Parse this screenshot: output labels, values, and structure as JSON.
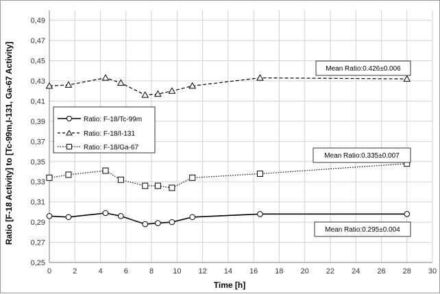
{
  "chart_data": {
    "type": "line",
    "xlabel": "Time [h]",
    "ylabel": "Ratio [F-18 Activity] to [Tc-99m,I-131, Ga-67 Activity]",
    "xlim": [
      0,
      30
    ],
    "ylim": [
      0.25,
      0.5
    ],
    "x_ticks": [
      "0",
      "2",
      "4",
      "6",
      "8",
      "10",
      "12",
      "14",
      "16",
      "18",
      "20",
      "22",
      "24",
      "26",
      "28",
      "30"
    ],
    "y_ticks": [
      "0,25",
      "0,27",
      "0,29",
      "0,31",
      "0,33",
      "0,35",
      "0,37",
      "0,39",
      "0,41",
      "0,43",
      "0,45",
      "0,47",
      "0,49"
    ],
    "grid": true,
    "legend_position": "left",
    "series": [
      {
        "name": "Ratio: F-18/Tc-99m",
        "marker": "circle",
        "dash": "solid",
        "points": [
          [
            0,
            0.296
          ],
          [
            1.5,
            0.295
          ],
          [
            4.4,
            0.299
          ],
          [
            5.6,
            0.296
          ],
          [
            7.5,
            0.288
          ],
          [
            8.5,
            0.289
          ],
          [
            9.6,
            0.29
          ],
          [
            11.2,
            0.295
          ],
          [
            16.5,
            0.298
          ],
          [
            28,
            0.298
          ]
        ]
      },
      {
        "name": "Ratio: F-18/I-131",
        "marker": "triangle",
        "dash": "dashed",
        "points": [
          [
            0,
            0.425
          ],
          [
            1.5,
            0.426
          ],
          [
            4.4,
            0.433
          ],
          [
            5.6,
            0.428
          ],
          [
            7.5,
            0.416
          ],
          [
            8.5,
            0.417
          ],
          [
            9.6,
            0.42
          ],
          [
            11.2,
            0.425
          ],
          [
            16.5,
            0.433
          ],
          [
            28,
            0.432
          ]
        ]
      },
      {
        "name": "Ratio: F-18/Ga-67",
        "marker": "square",
        "dash": "dotted",
        "points": [
          [
            0,
            0.334
          ],
          [
            1.5,
            0.337
          ],
          [
            4.4,
            0.341
          ],
          [
            5.6,
            0.332
          ],
          [
            7.5,
            0.326
          ],
          [
            8.5,
            0.326
          ],
          [
            9.6,
            0.324
          ],
          [
            11.2,
            0.334
          ],
          [
            16.5,
            0.338
          ],
          [
            28,
            0.348
          ]
        ]
      }
    ],
    "annotations": [
      {
        "text": "Mean Ratio:0.426±0.006"
      },
      {
        "text": "Mean Ratio:0.335±0.007"
      },
      {
        "text": "Mean Ratio:0.295±0.004"
      }
    ]
  }
}
